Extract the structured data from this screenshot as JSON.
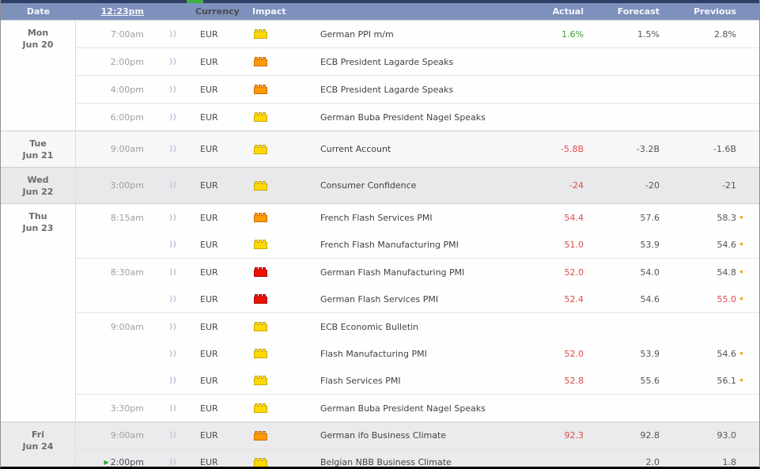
{
  "header": {
    "date": "Date",
    "time": "12:23pm",
    "currency": "Currency",
    "impact": "Impact",
    "actual": "Actual",
    "forecast": "Forecast",
    "previous": "Previous"
  },
  "icons": {
    "speaker": "))",
    "next_marker": "▶",
    "revised_marker": "◂"
  },
  "colors": {
    "header_bg": "#7e90bc",
    "topbar_bg": "#303f66",
    "topbar_green": "#3faf46",
    "actual_green": "#2fa52f",
    "actual_red": "#dd4b4b",
    "revised_orange": "#f7a300",
    "impact_yellow_fill": "#ffd900",
    "impact_yellow_stroke": "#c9a800",
    "impact_orange_fill": "#ff9900",
    "impact_orange_stroke": "#cc6f00",
    "impact_red_fill": "#ee1100",
    "impact_red_stroke": "#aa0000"
  },
  "days": [
    {
      "day": "Mon",
      "date": "Jun 20",
      "shade": "#fefefe",
      "rows": [
        {
          "time": "7:00am",
          "currency": "EUR",
          "impact": "yellow",
          "event": "German PPI m/m",
          "actual": "1.6%",
          "actual_color": "green",
          "forecast": "1.5%",
          "previous": "2.8%",
          "block": true
        },
        {
          "time": "2:00pm",
          "currency": "EUR",
          "impact": "orange",
          "event": "ECB President Lagarde Speaks",
          "block": true
        },
        {
          "time": "4:00pm",
          "currency": "EUR",
          "impact": "orange",
          "event": "ECB President Lagarde Speaks",
          "block": true
        },
        {
          "time": "6:00pm",
          "currency": "EUR",
          "impact": "yellow",
          "event": "German Buba President Nagel Speaks",
          "block": true
        }
      ]
    },
    {
      "day": "Tue",
      "date": "Jun 21",
      "shade": "#f7f7f8",
      "rows": [
        {
          "time": "9:00am",
          "currency": "EUR",
          "impact": "yellow",
          "event": "Current Account",
          "actual": "-5.8B",
          "actual_color": "red",
          "forecast": "-3.2B",
          "previous": "-1.6B",
          "block": true
        }
      ]
    },
    {
      "day": "Wed",
      "date": "Jun 22",
      "shade": "#e9e9eb",
      "rows": [
        {
          "time": "3:00pm",
          "currency": "EUR",
          "impact": "yellow",
          "event": "Consumer Confidence",
          "actual": "-24",
          "actual_color": "red",
          "forecast": "-20",
          "previous": "-21",
          "block": true
        }
      ]
    },
    {
      "day": "Thu",
      "date": "Jun 23",
      "shade": "#fefefe",
      "rows": [
        {
          "time": "8:15am",
          "currency": "EUR",
          "impact": "orange",
          "event": "French Flash Services PMI",
          "actual": "54.4",
          "actual_color": "red",
          "forecast": "57.6",
          "previous": "58.3",
          "revised": true,
          "block": true
        },
        {
          "time": "",
          "currency": "EUR",
          "impact": "yellow",
          "event": "French Flash Manufacturing PMI",
          "actual": "51.0",
          "actual_color": "red",
          "forecast": "53.9",
          "previous": "54.6",
          "revised": true
        },
        {
          "time": "8:30am",
          "currency": "EUR",
          "impact": "red",
          "event": "German Flash Manufacturing PMI",
          "actual": "52.0",
          "actual_color": "red",
          "forecast": "54.0",
          "previous": "54.8",
          "revised": true,
          "block": true
        },
        {
          "time": "",
          "currency": "EUR",
          "impact": "red",
          "event": "German Flash Services PMI",
          "actual": "52.4",
          "actual_color": "red",
          "forecast": "54.6",
          "previous": "55.0",
          "previous_color": "red",
          "revised": true
        },
        {
          "time": "9:00am",
          "currency": "EUR",
          "impact": "yellow",
          "event": "ECB Economic Bulletin",
          "block": true
        },
        {
          "time": "",
          "currency": "EUR",
          "impact": "yellow",
          "event": "Flash Manufacturing PMI",
          "actual": "52.0",
          "actual_color": "red",
          "forecast": "53.9",
          "previous": "54.6",
          "revised": true
        },
        {
          "time": "",
          "currency": "EUR",
          "impact": "yellow",
          "event": "Flash Services PMI",
          "actual": "52.8",
          "actual_color": "red",
          "forecast": "55.6",
          "previous": "56.1",
          "revised": true
        },
        {
          "time": "3:30pm",
          "currency": "EUR",
          "impact": "yellow",
          "event": "German Buba President Nagel Speaks",
          "block": true
        }
      ]
    },
    {
      "day": "Fri",
      "date": "Jun 24",
      "shade": "#ebebed",
      "rows": [
        {
          "time": "9:00am",
          "currency": "EUR",
          "impact": "orange",
          "event": "German ifo Business Climate",
          "actual": "92.3",
          "actual_color": "red",
          "forecast": "92.8",
          "previous": "93.0",
          "block": true
        },
        {
          "time": "2:00pm",
          "next": true,
          "currency": "EUR",
          "impact": "yellow",
          "event": "Belgian NBB Business Climate",
          "forecast": "2.0",
          "previous": "1.8",
          "block": true
        }
      ]
    }
  ]
}
